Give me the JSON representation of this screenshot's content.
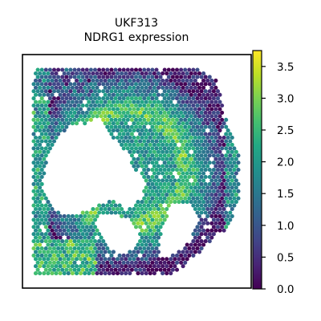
{
  "chart_data": {
    "type": "scatter",
    "title": "UKF313",
    "subtitle": "NDRG1 expression",
    "xlabel": "",
    "ylabel": "",
    "grid": false,
    "colormap": "viridis",
    "colorbar": {
      "range": [
        0.0,
        3.75
      ],
      "ticks": [
        0.0,
        0.5,
        1.0,
        1.5,
        2.0,
        2.5,
        3.0,
        3.5
      ],
      "tick_labels": [
        "0.0",
        "0.5",
        "1.0",
        "1.5",
        "2.0",
        "2.5",
        "3.0",
        "3.5"
      ],
      "position": "right"
    },
    "axes": {
      "xticks": [],
      "yticks": []
    },
    "spot_expression_profile": {
      "note_regions": [
        {
          "region": "upper-right tissue",
          "level": 0.3
        },
        {
          "region": "right edge",
          "level": 1.6
        },
        {
          "region": "central band",
          "level": 2.8
        },
        {
          "region": "lower-left tissue",
          "level": 2.3
        },
        {
          "region": "left edge",
          "level": 2.0
        }
      ]
    }
  }
}
